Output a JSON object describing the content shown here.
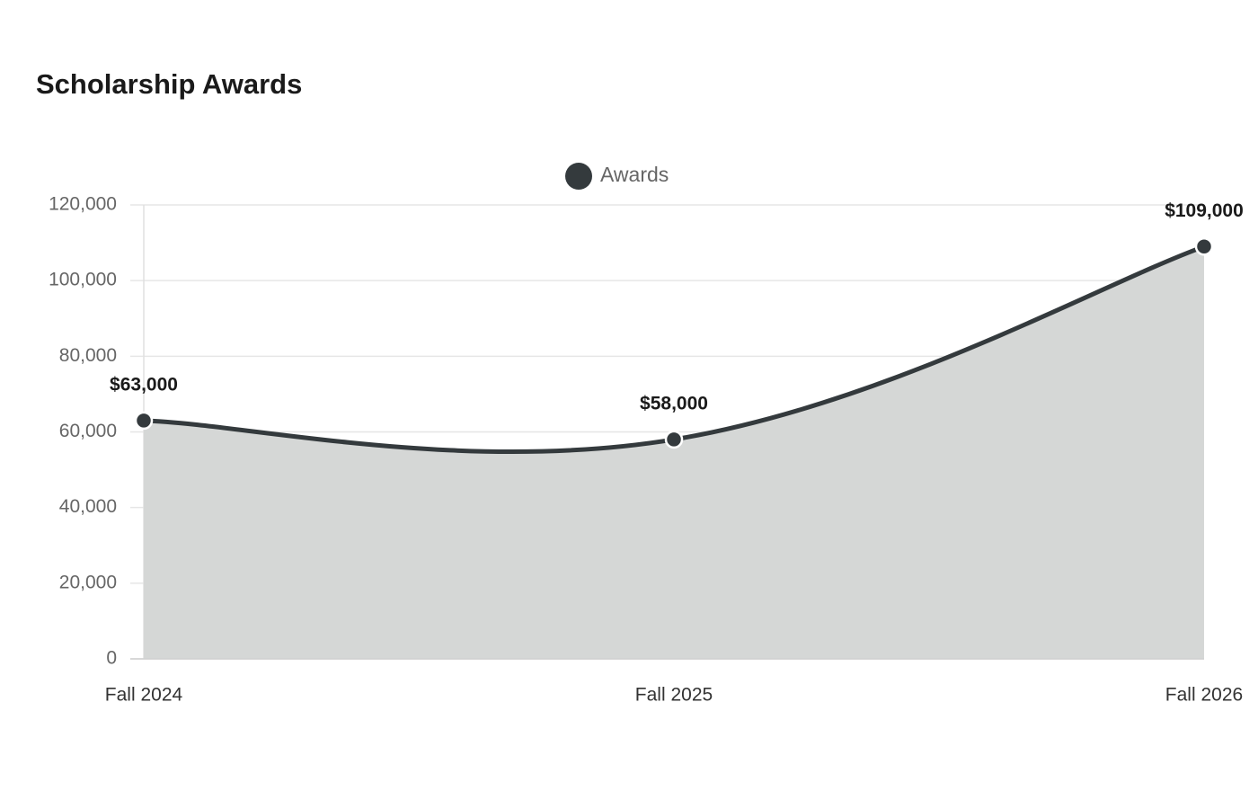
{
  "chart_data": {
    "type": "area",
    "title": "Scholarship Awards",
    "categories": [
      "Fall 2024",
      "Fall 2025",
      "Fall 2026"
    ],
    "series": [
      {
        "name": "Awards",
        "color": "#343a3d",
        "fill": "#d5d7d6",
        "values": [
          63000,
          58000,
          109000
        ],
        "value_labels": [
          "$63,000",
          "$58,000",
          "$109,000"
        ]
      }
    ],
    "ylim": [
      0,
      120000
    ],
    "yticks": [
      0,
      {
        "value": 20000,
        "label": "20,000"
      },
      {
        "value": 40000,
        "label": "40,000"
      },
      {
        "value": 60000,
        "label": "60,000"
      },
      {
        "value": 80000,
        "label": "80,000"
      },
      {
        "value": 100000,
        "label": "100,000"
      },
      {
        "value": 120000,
        "label": "120,000"
      }
    ],
    "grid": true,
    "legend": "top"
  }
}
